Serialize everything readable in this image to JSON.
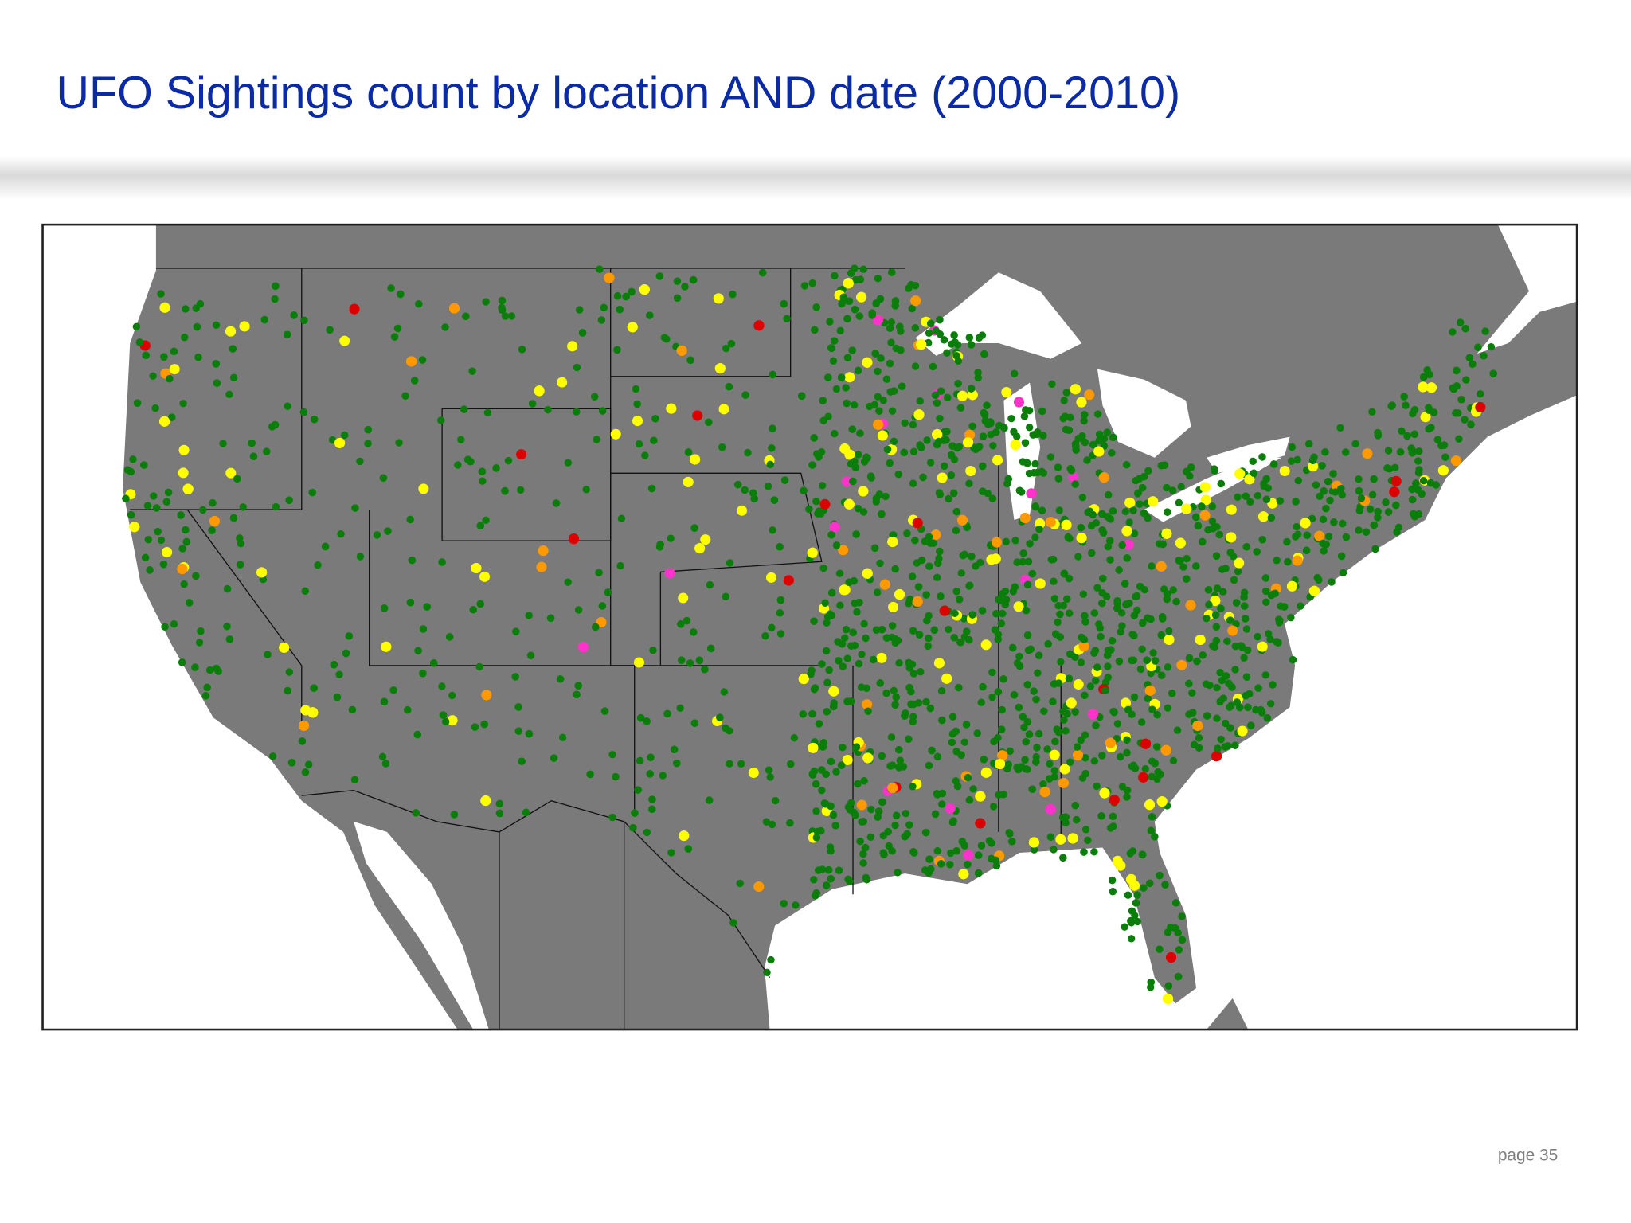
{
  "header": {
    "title": "UFO Sightings count by location AND date (2000-2010)"
  },
  "footer": {
    "page": "page 35"
  }
}
